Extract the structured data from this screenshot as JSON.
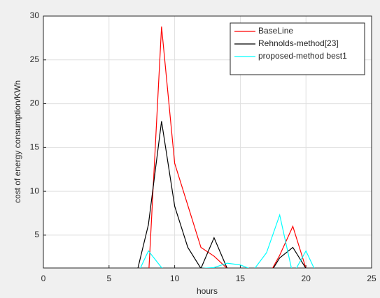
{
  "chart_data": {
    "type": "line",
    "xlabel": "hours",
    "ylabel": "cost of energy consumption/KWh",
    "x": [
      0,
      1,
      2,
      3,
      4,
      5,
      6,
      7,
      8,
      9,
      10,
      11,
      12,
      13,
      14,
      15,
      16,
      17,
      18,
      19,
      20,
      21,
      22,
      23,
      24
    ],
    "series": [
      {
        "name": "BaseLine",
        "color": "#ff0000",
        "values": [
          0,
          0,
          0,
          0,
          0,
          0,
          0,
          0,
          0,
          28.8,
          13.2,
          8.4,
          3.6,
          2.6,
          1.2,
          0,
          0,
          0,
          2.7,
          6,
          1.2,
          0,
          0,
          0,
          0
        ]
      },
      {
        "name": "Rehnolds-method[23]",
        "color": "#000000",
        "values": [
          0,
          0,
          0,
          0,
          0,
          0,
          0,
          0,
          6.2,
          18,
          8.3,
          3.6,
          1.2,
          4.7,
          1.2,
          0,
          0,
          0,
          2.4,
          3.6,
          1.2,
          0,
          0,
          0,
          0
        ]
      },
      {
        "name": "proposed-method best1",
        "color": "#00ffff",
        "values": [
          0,
          0,
          0,
          0,
          0,
          0,
          0,
          0,
          3.2,
          1.3,
          0,
          0,
          1.2,
          1.3,
          1.8,
          1.6,
          1.0,
          3.0,
          7.3,
          0.5,
          3.2,
          0,
          0,
          0,
          0
        ]
      }
    ],
    "xlim": [
      0,
      25
    ],
    "xticks": [
      0,
      5,
      10,
      15,
      20,
      25
    ],
    "ylim": [
      1.25,
      30
    ],
    "yticks": [
      5,
      10,
      15,
      20,
      25,
      30
    ],
    "grid": true,
    "legend": "top-right"
  }
}
